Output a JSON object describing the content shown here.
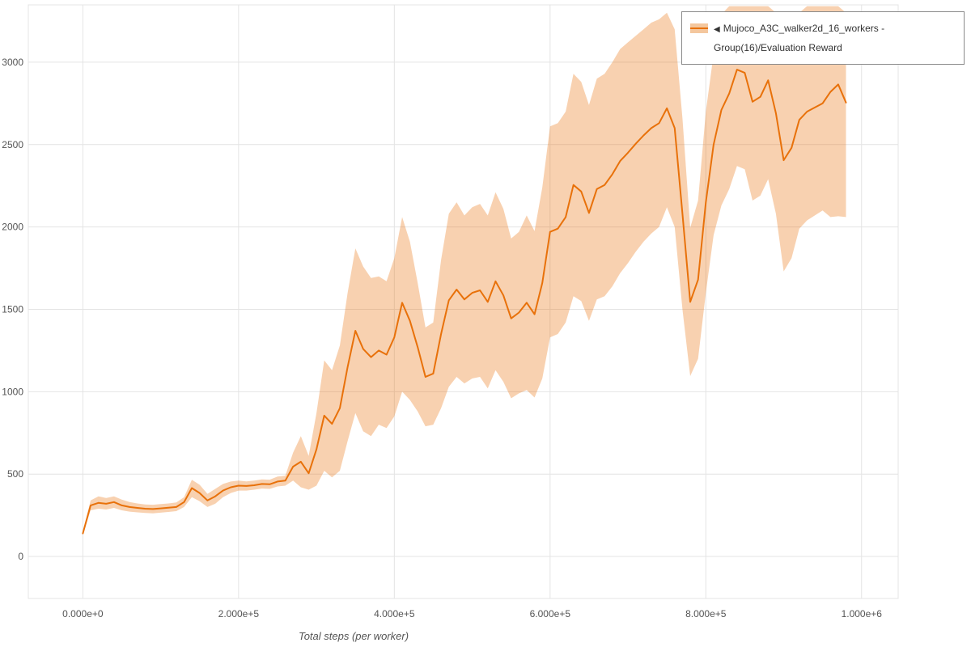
{
  "legend": {
    "toggle_icon": "◀",
    "series_label": "Mujoco_A3C_walker2d_16_workers - Group(16)/Evaluation Reward"
  },
  "chart_data": {
    "type": "line",
    "title": "",
    "xlabel": "Total steps (per worker)",
    "ylabel": "",
    "legend_position": "top-right",
    "grid": true,
    "xlim": [
      -70000,
      1047000
    ],
    "ylim": [
      -255,
      3348
    ],
    "x_ticks": [
      {
        "value": 0,
        "label": "0.000e+0"
      },
      {
        "value": 200000,
        "label": "2.000e+5"
      },
      {
        "value": 400000,
        "label": "4.000e+5"
      },
      {
        "value": 600000,
        "label": "6.000e+5"
      },
      {
        "value": 800000,
        "label": "8.000e+5"
      },
      {
        "value": 1000000,
        "label": "1.000e+6"
      }
    ],
    "y_ticks": [
      0,
      500,
      1000,
      1500,
      2000,
      2500,
      3000
    ],
    "colors": {
      "line": "#e8710a",
      "band": "#e8710a",
      "band_opacity": 0.32,
      "grid": "#e4e4e4"
    },
    "series": [
      {
        "name": "Mujoco_A3C_walker2d_16_workers - Group(16)/Evaluation Reward",
        "x": [
          0,
          10000,
          20000,
          30000,
          40000,
          50000,
          60000,
          70000,
          80000,
          90000,
          100000,
          110000,
          120000,
          130000,
          140000,
          150000,
          160000,
          170000,
          180000,
          190000,
          200000,
          210000,
          220000,
          230000,
          240000,
          250000,
          260000,
          270000,
          280000,
          290000,
          300000,
          310000,
          320000,
          330000,
          340000,
          350000,
          360000,
          370000,
          380000,
          390000,
          400000,
          410000,
          420000,
          430000,
          440000,
          450000,
          460000,
          470000,
          480000,
          490000,
          500000,
          510000,
          520000,
          530000,
          540000,
          550000,
          560000,
          570000,
          580000,
          590000,
          600000,
          610000,
          620000,
          630000,
          640000,
          650000,
          660000,
          670000,
          680000,
          690000,
          700000,
          710000,
          720000,
          730000,
          740000,
          750000,
          760000,
          770000,
          780000,
          790000,
          800000,
          810000,
          820000,
          830000,
          840000,
          850000,
          860000,
          870000,
          880000,
          890000,
          900000,
          910000,
          920000,
          930000,
          940000,
          950000,
          960000,
          970000,
          980000
        ],
        "mean": [
          140,
          310,
          325,
          320,
          330,
          310,
          300,
          295,
          290,
          288,
          292,
          296,
          300,
          330,
          415,
          385,
          340,
          365,
          400,
          420,
          430,
          428,
          432,
          440,
          438,
          455,
          460,
          545,
          575,
          505,
          650,
          855,
          805,
          900,
          1150,
          1370,
          1260,
          1210,
          1250,
          1225,
          1330,
          1540,
          1430,
          1270,
          1090,
          1110,
          1350,
          1555,
          1620,
          1560,
          1600,
          1615,
          1545,
          1670,
          1585,
          1445,
          1480,
          1540,
          1470,
          1660,
          1970,
          1990,
          2060,
          2255,
          2215,
          2085,
          2230,
          2255,
          2320,
          2400,
          2450,
          2505,
          2555,
          2600,
          2630,
          2720,
          2600,
          2080,
          1545,
          1680,
          2150,
          2500,
          2710,
          2810,
          2955,
          2935,
          2760,
          2790,
          2890,
          2690,
          2405,
          2480,
          2650,
          2700,
          2725,
          2750,
          2820,
          2865,
          2755
        ],
        "lower": [
          130,
          280,
          290,
          285,
          295,
          280,
          272,
          268,
          264,
          262,
          266,
          270,
          275,
          300,
          360,
          335,
          300,
          320,
          360,
          385,
          400,
          400,
          405,
          412,
          410,
          425,
          430,
          460,
          420,
          405,
          430,
          520,
          480,
          520,
          700,
          870,
          760,
          730,
          800,
          780,
          850,
          1000,
          950,
          880,
          790,
          800,
          900,
          1030,
          1090,
          1050,
          1080,
          1090,
          1020,
          1130,
          1060,
          960,
          990,
          1010,
          965,
          1080,
          1330,
          1350,
          1420,
          1580,
          1550,
          1430,
          1560,
          1580,
          1640,
          1720,
          1780,
          1850,
          1910,
          1960,
          2000,
          2120,
          2000,
          1500,
          1095,
          1200,
          1600,
          1950,
          2130,
          2230,
          2370,
          2350,
          2160,
          2190,
          2290,
          2080,
          1730,
          1810,
          1990,
          2040,
          2070,
          2100,
          2060,
          2065,
          2060
        ],
        "upper": [
          150,
          340,
          365,
          355,
          365,
          345,
          330,
          322,
          316,
          314,
          318,
          322,
          328,
          360,
          465,
          435,
          380,
          410,
          440,
          455,
          460,
          456,
          460,
          468,
          466,
          485,
          490,
          630,
          730,
          610,
          870,
          1190,
          1130,
          1280,
          1600,
          1870,
          1760,
          1690,
          1700,
          1670,
          1810,
          2060,
          1910,
          1660,
          1390,
          1420,
          1800,
          2080,
          2150,
          2070,
          2120,
          2140,
          2070,
          2210,
          2110,
          1930,
          1970,
          2070,
          1975,
          2240,
          2610,
          2630,
          2700,
          2930,
          2880,
          2740,
          2900,
          2930,
          3000,
          3080,
          3120,
          3160,
          3200,
          3240,
          3260,
          3300,
          3200,
          2660,
          1995,
          2160,
          2700,
          3050,
          3290,
          3340,
          3340,
          3340,
          3340,
          3340,
          3340,
          3300,
          3080,
          3150,
          3300,
          3340,
          3340,
          3340,
          3340,
          3340,
          3300
        ]
      }
    ]
  }
}
